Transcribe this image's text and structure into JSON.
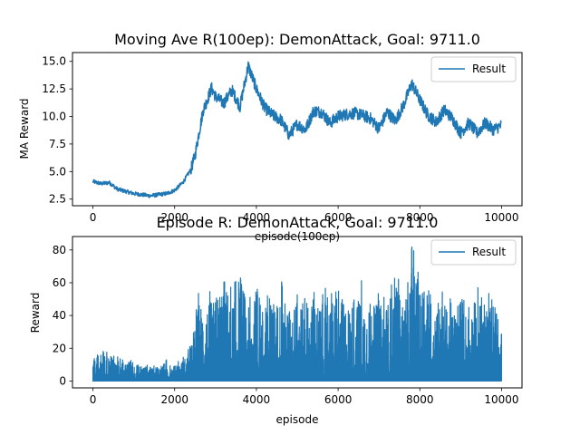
{
  "chart_data": [
    {
      "type": "line",
      "title": "Moving Ave R(100ep): DemonAttack, Goal: 9711.0",
      "xlabel": "episode(100ep)",
      "ylabel": "MA Reward",
      "xlim": [
        -500,
        10500
      ],
      "ylim": [
        1.9,
        15.8
      ],
      "xticks": [
        0,
        2000,
        4000,
        6000,
        8000,
        10000
      ],
      "yticks": [
        2.5,
        5.0,
        7.5,
        10.0,
        12.5,
        15.0
      ],
      "ytick_labels": [
        "2.5",
        "5.0",
        "7.5",
        "10.0",
        "12.5",
        "15.0"
      ],
      "legend": {
        "position": "top-right",
        "entries": [
          "Result"
        ]
      },
      "grid": false,
      "series": [
        {
          "name": "Result",
          "color": "#1f77b4",
          "x": [
            0,
            200,
            400,
            600,
            800,
            1000,
            1200,
            1400,
            1600,
            1800,
            2000,
            2200,
            2400,
            2500,
            2600,
            2700,
            2800,
            2900,
            3000,
            3200,
            3400,
            3600,
            3800,
            4000,
            4200,
            4400,
            4600,
            4800,
            5000,
            5200,
            5400,
            5600,
            5800,
            6000,
            6200,
            6400,
            6600,
            6800,
            7000,
            7200,
            7400,
            7600,
            7800,
            8000,
            8200,
            8400,
            8600,
            8800,
            9000,
            9200,
            9400,
            9600,
            9800,
            10000
          ],
          "y": [
            4.1,
            3.9,
            4.0,
            3.4,
            3.2,
            3.0,
            2.9,
            2.8,
            2.9,
            3.0,
            3.3,
            4.0,
            5.2,
            6.5,
            8.6,
            10.6,
            11.5,
            12.6,
            11.8,
            11.2,
            12.4,
            10.9,
            14.6,
            12.5,
            10.8,
            10.1,
            9.7,
            8.3,
            9.3,
            8.8,
            10.5,
            10.4,
            9.4,
            10.0,
            10.2,
            10.3,
            10.1,
            9.8,
            8.9,
            10.4,
            9.6,
            11.0,
            13.0,
            11.5,
            10.1,
            9.5,
            10.6,
            9.8,
            8.5,
            9.4,
            8.5,
            9.4,
            8.8,
            9.2
          ]
        }
      ]
    },
    {
      "type": "line",
      "title": "Episode R: DemonAttack, Goal: 9711.0",
      "xlabel": "episode",
      "ylabel": "Reward",
      "xlim": [
        -500,
        10500
      ],
      "ylim": [
        -4.2,
        88.2
      ],
      "xticks": [
        0,
        2000,
        4000,
        6000,
        8000,
        10000
      ],
      "yticks": [
        0,
        20,
        40,
        60,
        80
      ],
      "legend": {
        "position": "top-right",
        "entries": [
          "Result"
        ]
      },
      "grid": false,
      "series": [
        {
          "name": "Result",
          "color": "#1f77b4",
          "x": [
            0,
            200,
            400,
            600,
            800,
            1000,
            1200,
            1400,
            1600,
            1800,
            2000,
            2200,
            2400,
            2600,
            2800,
            3000,
            3200,
            3400,
            3600,
            3800,
            4000,
            4200,
            4400,
            4600,
            4800,
            5000,
            5200,
            5400,
            5600,
            5800,
            6000,
            6200,
            6400,
            6600,
            6800,
            7000,
            7200,
            7400,
            7600,
            7800,
            8000,
            8200,
            8400,
            8600,
            8800,
            9000,
            9200,
            9400,
            9600,
            9800,
            10000
          ],
          "y": [
            14,
            20,
            17,
            15,
            12,
            13,
            11,
            10,
            12,
            13,
            11,
            15,
            22,
            57,
            55,
            59,
            76,
            55,
            79,
            52,
            61,
            52,
            53,
            63,
            52,
            57,
            55,
            57,
            55,
            59,
            56,
            57,
            56,
            63,
            57,
            54,
            57,
            69,
            56,
            84,
            68,
            59,
            57,
            56,
            48,
            50,
            52,
            58,
            52,
            57,
            36
          ],
          "min_y": 0
        }
      ]
    }
  ]
}
